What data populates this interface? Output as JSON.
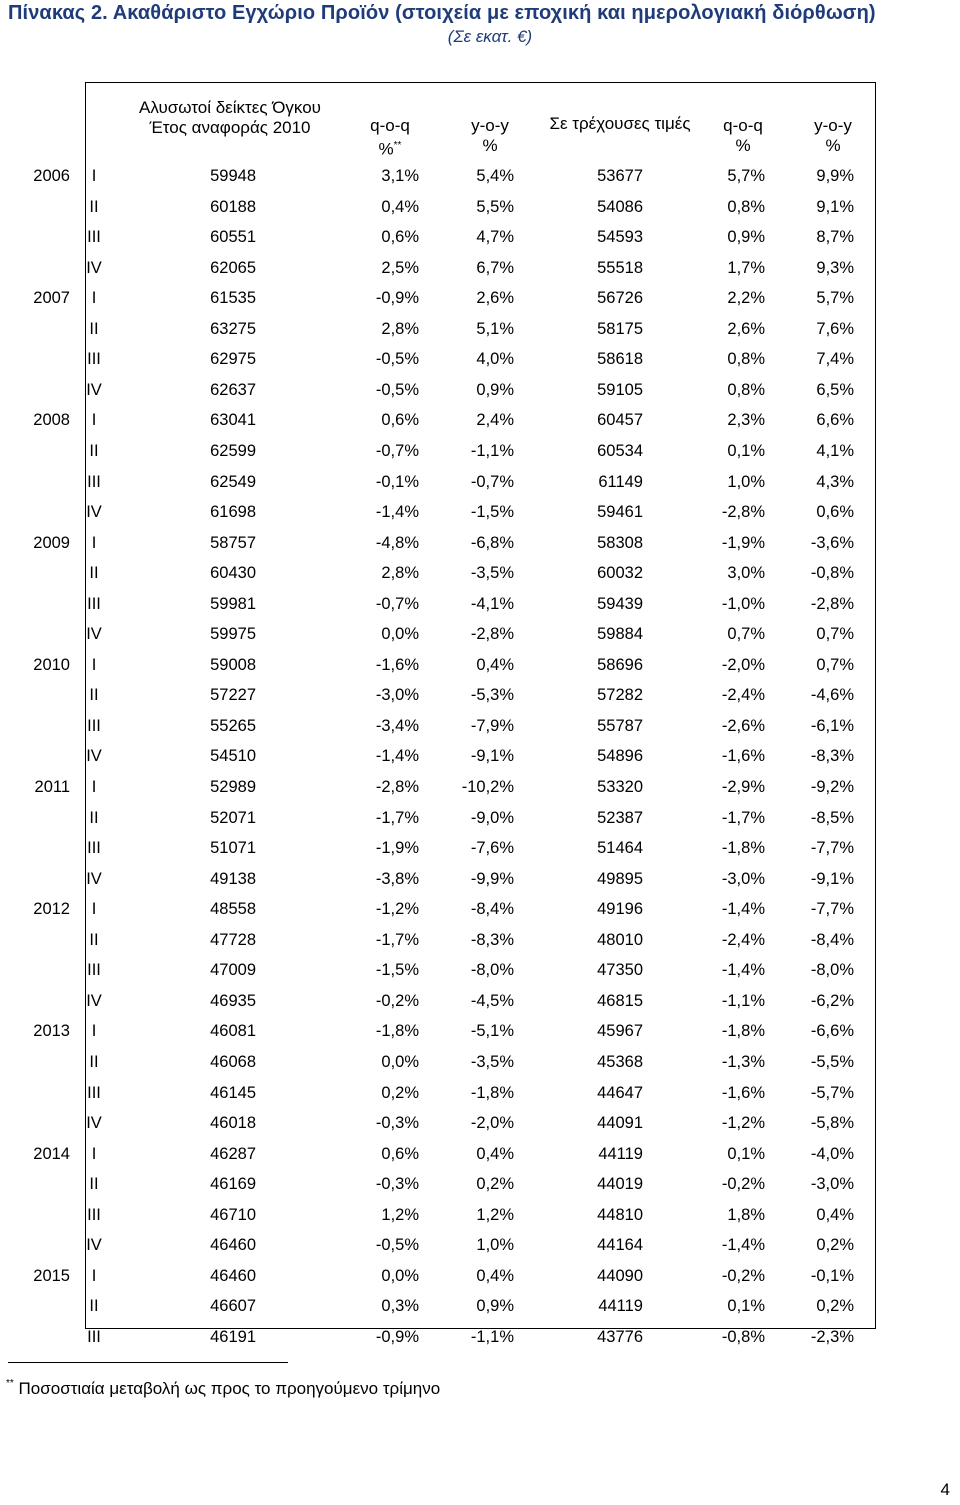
{
  "title": "Πίνακας 2. Ακαθάριστο Εγχώριο Προϊόν (στοιχεία με εποχική και ημερολογιακή διόρθωση)",
  "subtitle": "(Σε εκατ. €)",
  "headers": {
    "col1_line1": "Αλυσωτοί δείκτες Όγκου",
    "col1_line2": "Έτος αναφοράς 2010",
    "col2_line1": "q-o-q",
    "col2_line2": "%",
    "col2_mark": "**",
    "col3_line1": "y-o-y",
    "col3_line2": "%",
    "col4_line1": "Σε τρέχουσες τιμές",
    "col5_line1": "q-o-q",
    "col5_line2": "%",
    "col6_line1": "y-o-y",
    "col6_line2": "%"
  },
  "rows": [
    {
      "year": "2006",
      "q": "I",
      "v": "59948",
      "qoq": "3,1%",
      "yoy": "5,4%",
      "cur": "53677",
      "cqoq": "5,7%",
      "cyoy": "9,9%"
    },
    {
      "year": "",
      "q": "II",
      "v": "60188",
      "qoq": "0,4%",
      "yoy": "5,5%",
      "cur": "54086",
      "cqoq": "0,8%",
      "cyoy": "9,1%"
    },
    {
      "year": "",
      "q": "III",
      "v": "60551",
      "qoq": "0,6%",
      "yoy": "4,7%",
      "cur": "54593",
      "cqoq": "0,9%",
      "cyoy": "8,7%"
    },
    {
      "year": "",
      "q": "IV",
      "v": "62065",
      "qoq": "2,5%",
      "yoy": "6,7%",
      "cur": "55518",
      "cqoq": "1,7%",
      "cyoy": "9,3%"
    },
    {
      "year": "2007",
      "q": "I",
      "v": "61535",
      "qoq": "-0,9%",
      "yoy": "2,6%",
      "cur": "56726",
      "cqoq": "2,2%",
      "cyoy": "5,7%"
    },
    {
      "year": "",
      "q": "II",
      "v": "63275",
      "qoq": "2,8%",
      "yoy": "5,1%",
      "cur": "58175",
      "cqoq": "2,6%",
      "cyoy": "7,6%"
    },
    {
      "year": "",
      "q": "III",
      "v": "62975",
      "qoq": "-0,5%",
      "yoy": "4,0%",
      "cur": "58618",
      "cqoq": "0,8%",
      "cyoy": "7,4%"
    },
    {
      "year": "",
      "q": "IV",
      "v": "62637",
      "qoq": "-0,5%",
      "yoy": "0,9%",
      "cur": "59105",
      "cqoq": "0,8%",
      "cyoy": "6,5%"
    },
    {
      "year": "2008",
      "q": "I",
      "v": "63041",
      "qoq": "0,6%",
      "yoy": "2,4%",
      "cur": "60457",
      "cqoq": "2,3%",
      "cyoy": "6,6%"
    },
    {
      "year": "",
      "q": "II",
      "v": "62599",
      "qoq": "-0,7%",
      "yoy": "-1,1%",
      "cur": "60534",
      "cqoq": "0,1%",
      "cyoy": "4,1%"
    },
    {
      "year": "",
      "q": "III",
      "v": "62549",
      "qoq": "-0,1%",
      "yoy": "-0,7%",
      "cur": "61149",
      "cqoq": "1,0%",
      "cyoy": "4,3%"
    },
    {
      "year": "",
      "q": "IV",
      "v": "61698",
      "qoq": "-1,4%",
      "yoy": "-1,5%",
      "cur": "59461",
      "cqoq": "-2,8%",
      "cyoy": "0,6%"
    },
    {
      "year": "2009",
      "q": "I",
      "v": "58757",
      "qoq": "-4,8%",
      "yoy": "-6,8%",
      "cur": "58308",
      "cqoq": "-1,9%",
      "cyoy": "-3,6%"
    },
    {
      "year": "",
      "q": "II",
      "v": "60430",
      "qoq": "2,8%",
      "yoy": "-3,5%",
      "cur": "60032",
      "cqoq": "3,0%",
      "cyoy": "-0,8%"
    },
    {
      "year": "",
      "q": "III",
      "v": "59981",
      "qoq": "-0,7%",
      "yoy": "-4,1%",
      "cur": "59439",
      "cqoq": "-1,0%",
      "cyoy": "-2,8%"
    },
    {
      "year": "",
      "q": "IV",
      "v": "59975",
      "qoq": "0,0%",
      "yoy": "-2,8%",
      "cur": "59884",
      "cqoq": "0,7%",
      "cyoy": "0,7%"
    },
    {
      "year": "2010",
      "q": "I",
      "v": "59008",
      "qoq": "-1,6%",
      "yoy": "0,4%",
      "cur": "58696",
      "cqoq": "-2,0%",
      "cyoy": "0,7%"
    },
    {
      "year": "",
      "q": "II",
      "v": "57227",
      "qoq": "-3,0%",
      "yoy": "-5,3%",
      "cur": "57282",
      "cqoq": "-2,4%",
      "cyoy": "-4,6%"
    },
    {
      "year": "",
      "q": "III",
      "v": "55265",
      "qoq": "-3,4%",
      "yoy": "-7,9%",
      "cur": "55787",
      "cqoq": "-2,6%",
      "cyoy": "-6,1%"
    },
    {
      "year": "",
      "q": "IV",
      "v": "54510",
      "qoq": "-1,4%",
      "yoy": "-9,1%",
      "cur": "54896",
      "cqoq": "-1,6%",
      "cyoy": "-8,3%"
    },
    {
      "year": "2011",
      "q": "I",
      "v": "52989",
      "qoq": "-2,8%",
      "yoy": "-10,2%",
      "cur": "53320",
      "cqoq": "-2,9%",
      "cyoy": "-9,2%"
    },
    {
      "year": "",
      "q": "II",
      "v": "52071",
      "qoq": "-1,7%",
      "yoy": "-9,0%",
      "cur": "52387",
      "cqoq": "-1,7%",
      "cyoy": "-8,5%"
    },
    {
      "year": "",
      "q": "III",
      "v": "51071",
      "qoq": "-1,9%",
      "yoy": "-7,6%",
      "cur": "51464",
      "cqoq": "-1,8%",
      "cyoy": "-7,7%"
    },
    {
      "year": "",
      "q": "IV",
      "v": "49138",
      "qoq": "-3,8%",
      "yoy": "-9,9%",
      "cur": "49895",
      "cqoq": "-3,0%",
      "cyoy": "-9,1%"
    },
    {
      "year": "2012",
      "q": "I",
      "v": "48558",
      "qoq": "-1,2%",
      "yoy": "-8,4%",
      "cur": "49196",
      "cqoq": "-1,4%",
      "cyoy": "-7,7%"
    },
    {
      "year": "",
      "q": "II",
      "v": "47728",
      "qoq": "-1,7%",
      "yoy": "-8,3%",
      "cur": "48010",
      "cqoq": "-2,4%",
      "cyoy": "-8,4%"
    },
    {
      "year": "",
      "q": "III",
      "v": "47009",
      "qoq": "-1,5%",
      "yoy": "-8,0%",
      "cur": "47350",
      "cqoq": "-1,4%",
      "cyoy": "-8,0%"
    },
    {
      "year": "",
      "q": "IV",
      "v": "46935",
      "qoq": "-0,2%",
      "yoy": "-4,5%",
      "cur": "46815",
      "cqoq": "-1,1%",
      "cyoy": "-6,2%"
    },
    {
      "year": "2013",
      "q": "I",
      "v": "46081",
      "qoq": "-1,8%",
      "yoy": "-5,1%",
      "cur": "45967",
      "cqoq": "-1,8%",
      "cyoy": "-6,6%"
    },
    {
      "year": "",
      "q": "II",
      "v": "46068",
      "qoq": "0,0%",
      "yoy": "-3,5%",
      "cur": "45368",
      "cqoq": "-1,3%",
      "cyoy": "-5,5%"
    },
    {
      "year": "",
      "q": "III",
      "v": "46145",
      "qoq": "0,2%",
      "yoy": "-1,8%",
      "cur": "44647",
      "cqoq": "-1,6%",
      "cyoy": "-5,7%"
    },
    {
      "year": "",
      "q": "IV",
      "v": "46018",
      "qoq": "-0,3%",
      "yoy": "-2,0%",
      "cur": "44091",
      "cqoq": "-1,2%",
      "cyoy": "-5,8%"
    },
    {
      "year": "2014",
      "q": "I",
      "v": "46287",
      "qoq": "0,6%",
      "yoy": "0,4%",
      "cur": "44119",
      "cqoq": "0,1%",
      "cyoy": "-4,0%"
    },
    {
      "year": "",
      "q": "II",
      "v": "46169",
      "qoq": "-0,3%",
      "yoy": "0,2%",
      "cur": "44019",
      "cqoq": "-0,2%",
      "cyoy": "-3,0%"
    },
    {
      "year": "",
      "q": "III",
      "v": "46710",
      "qoq": "1,2%",
      "yoy": "1,2%",
      "cur": "44810",
      "cqoq": "1,8%",
      "cyoy": "0,4%"
    },
    {
      "year": "",
      "q": "IV",
      "v": "46460",
      "qoq": "-0,5%",
      "yoy": "1,0%",
      "cur": "44164",
      "cqoq": "-1,4%",
      "cyoy": "0,2%"
    },
    {
      "year": "2015",
      "q": "I",
      "v": "46460",
      "qoq": "0,0%",
      "yoy": "0,4%",
      "cur": "44090",
      "cqoq": "-0,2%",
      "cyoy": "-0,1%"
    },
    {
      "year": "",
      "q": "II",
      "v": "46607",
      "qoq": "0,3%",
      "yoy": "0,9%",
      "cur": "44119",
      "cqoq": "0,1%",
      "cyoy": "0,2%"
    },
    {
      "year": "",
      "q": "III",
      "v": "46191",
      "qoq": "-0,9%",
      "yoy": "-1,1%",
      "cur": "43776",
      "cqoq": "-0,8%",
      "cyoy": "-2,3%"
    }
  ],
  "footnote": {
    "mark": "**",
    "text": "Ποσοστιαία μεταβολή ως προς το προηγούμενο τρίμηνο"
  },
  "page_number": "4",
  "colors": {
    "title": "#1f3c7a",
    "text": "#000000",
    "rules": "#000000"
  }
}
